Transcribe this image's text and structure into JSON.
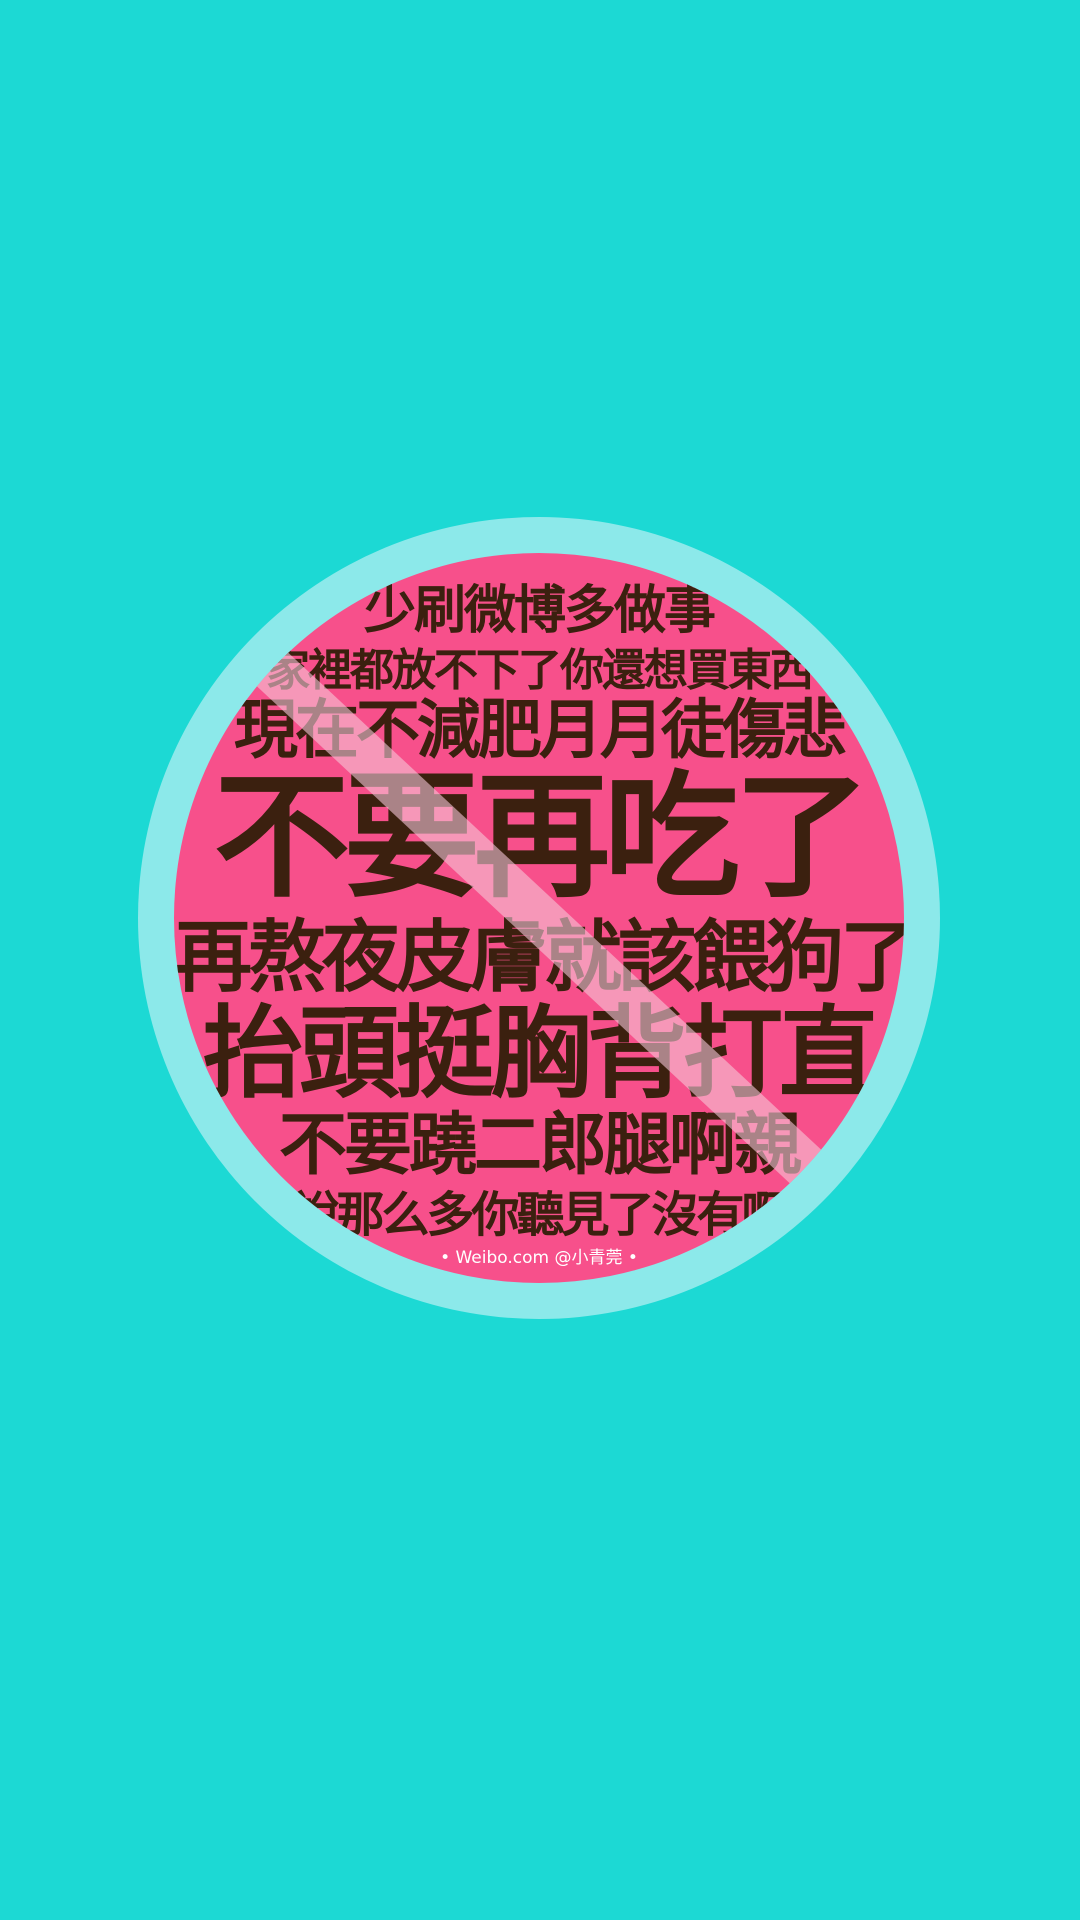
{
  "colors": {
    "background": "#1cd9d4",
    "ring": "#8ce9ea",
    "sign_fill": "#f7508b",
    "text": "#3b200f",
    "slash": "#f5c7d7",
    "credit_text": "#ffffff"
  },
  "sign": {
    "lines": [
      "少刷微博多做事",
      "家裡都放不下了你還想買東西",
      "現在不減肥月月徒傷悲",
      "不要再吃了",
      "再熬夜皮膚就該餵狗了",
      "抬頭挺胸背打直",
      "不要蹺二郎腿啊親",
      "說那么多你聽見了沒有啊"
    ],
    "credit": "• Weibo.com @小青莞 •"
  }
}
